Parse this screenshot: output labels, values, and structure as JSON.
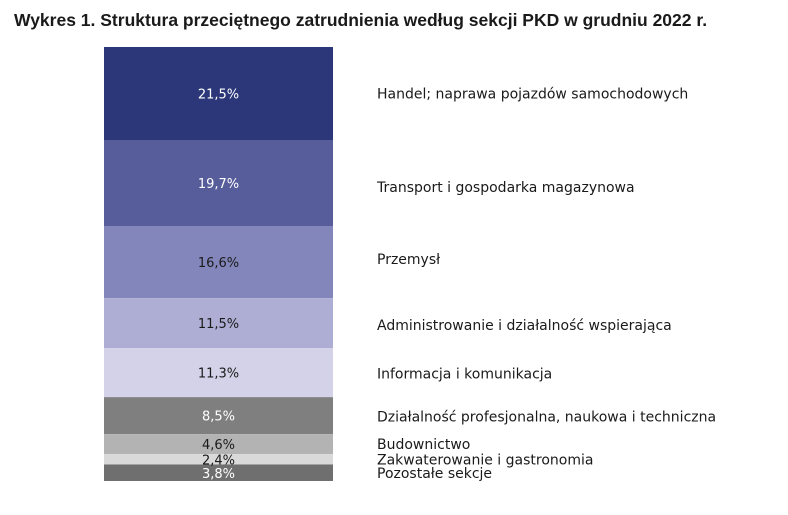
{
  "chart_data": {
    "type": "bar",
    "subtype": "stacked-100-percent",
    "title": "Wykres 1. Struktura przeciętnego zatrudnienia według sekcji PKD w grudniu 2022 r.",
    "series": [
      {
        "category": "Handel; naprawa pojazdów samochodowych",
        "value": 21.5,
        "label": "21,5%",
        "color": "#2b3778",
        "text_color": "#ffffff"
      },
      {
        "category": "Transport i gospodarka magazynowa",
        "value": 19.7,
        "label": "19,7%",
        "color": "#575c9a",
        "text_color": "#ffffff"
      },
      {
        "category": "Przemysł",
        "value": 16.6,
        "label": "16,6%",
        "color": "#8386bb",
        "text_color": "#1a1a1a"
      },
      {
        "category": "Administrowanie i działalność wspierająca",
        "value": 11.5,
        "label": "11,5%",
        "color": "#aeaed4",
        "text_color": "#1a1a1a"
      },
      {
        "category": "Informacja i komunikacja",
        "value": 11.3,
        "label": "11,3%",
        "color": "#d3d2e8",
        "text_color": "#1a1a1a"
      },
      {
        "category": "Działalność profesjonalna, naukowa i techniczna",
        "value": 8.5,
        "label": "8,5%",
        "color": "#7f7f7f",
        "text_color": "#ffffff"
      },
      {
        "category": "Budownictwo",
        "value": 4.6,
        "label": "4,6%",
        "color": "#b3b3b3",
        "text_color": "#1a1a1a"
      },
      {
        "category": "Zakwaterowanie i gastronomia",
        "value": 2.4,
        "label": "2,4%",
        "color": "#d9d9d9",
        "text_color": "#1a1a1a"
      },
      {
        "category": "Pozostałe sekcje",
        "value": 3.8,
        "label": "3,8%",
        "color": "#6f6f6f",
        "text_color": "#ffffff"
      }
    ]
  }
}
